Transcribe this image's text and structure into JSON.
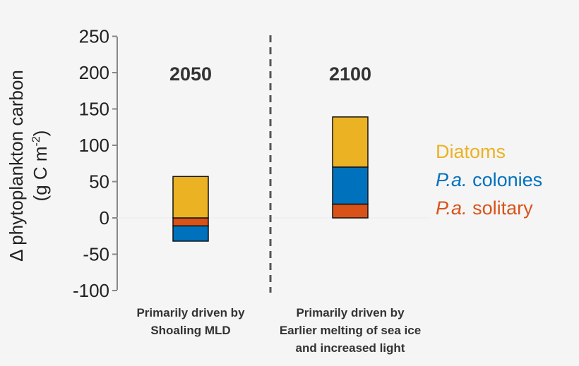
{
  "chart_data": {
    "type": "bar",
    "stacked": true,
    "ylabel_line1": "Δ phytoplankton carbon",
    "ylabel_line2": "(g C m",
    "ylabel_sup": "-2",
    "ylabel_close": ")",
    "ylim": [
      -100,
      250
    ],
    "yticks": [
      250,
      200,
      150,
      100,
      50,
      0,
      -50,
      -100
    ],
    "grid": false,
    "legend_position": "right",
    "panels": [
      {
        "title": "2050",
        "category_lines": [
          "Primarily driven by",
          "Shoaling MLD"
        ]
      },
      {
        "title": "2100",
        "category_lines": [
          "Primarily driven by",
          "Earlier melting of sea ice",
          "and increased light"
        ]
      }
    ],
    "series": [
      {
        "name": "Diatoms",
        "name_italic": "",
        "color": "#ebb223",
        "values": [
          57,
          69
        ]
      },
      {
        "name": " colonies",
        "name_italic": "P.a.",
        "color": "#0072bd",
        "values": [
          -21,
          51
        ]
      },
      {
        "name": " solitary",
        "name_italic": "P.a.",
        "color": "#d95319",
        "values": [
          -11,
          19
        ]
      }
    ],
    "separator": "dashed"
  }
}
